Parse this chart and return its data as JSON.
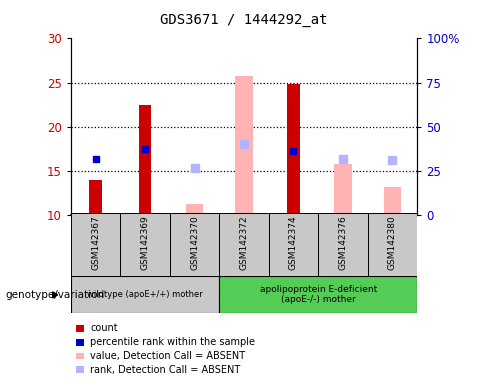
{
  "title": "GDS3671 / 1444292_at",
  "samples": [
    "GSM142367",
    "GSM142369",
    "GSM142370",
    "GSM142372",
    "GSM142374",
    "GSM142376",
    "GSM142380"
  ],
  "ylim_left": [
    10,
    30
  ],
  "ylim_right": [
    0,
    100
  ],
  "yticks_left": [
    10,
    15,
    20,
    25,
    30
  ],
  "yticks_right": [
    0,
    25,
    50,
    75,
    100
  ],
  "yticklabels_right": [
    "0",
    "25",
    "50",
    "75",
    "100%"
  ],
  "count_values": [
    14.0,
    22.5,
    null,
    null,
    24.8,
    null,
    null
  ],
  "count_color": "#cc0000",
  "percentile_values": [
    16.3,
    17.5,
    null,
    null,
    17.3,
    null,
    null
  ],
  "percentile_color": "#0000cc",
  "absent_value_values": [
    null,
    null,
    11.2,
    25.7,
    null,
    15.8,
    13.2
  ],
  "absent_value_color": "#ffb3b3",
  "absent_rank_values": [
    null,
    null,
    15.3,
    18.1,
    null,
    16.3,
    16.2
  ],
  "absent_rank_color": "#b3b3ff",
  "bar_bottom": 10,
  "group1_label": "wildtype (apoE+/+) mother",
  "group2_label": "apolipoprotein E-deficient\n(apoE-/-) mother",
  "group_label": "genotype/variation",
  "group1_color": "#c8c8c8",
  "group2_color": "#55cc55",
  "xtick_bg_color": "#c8c8c8",
  "count_bar_width": 0.25,
  "absent_bar_width": 0.35,
  "legend_items": [
    {
      "color": "#cc0000",
      "label": "count"
    },
    {
      "color": "#0000cc",
      "label": "percentile rank within the sample"
    },
    {
      "color": "#ffb3b3",
      "label": "value, Detection Call = ABSENT"
    },
    {
      "color": "#b3b3ff",
      "label": "rank, Detection Call = ABSENT"
    }
  ]
}
